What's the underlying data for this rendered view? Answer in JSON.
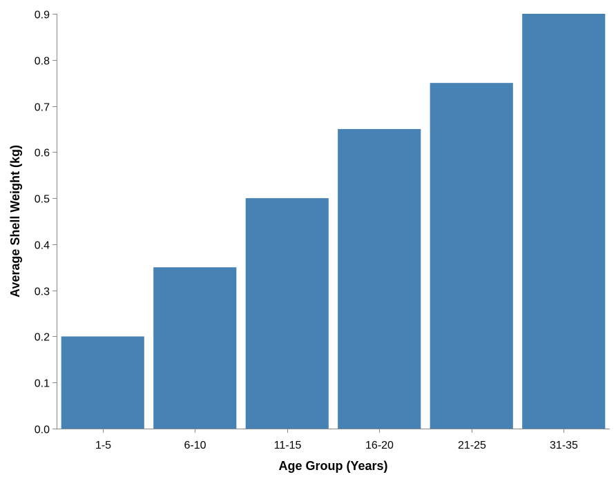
{
  "chart_data": {
    "type": "bar",
    "categories": [
      "1-5",
      "6-10",
      "11-15",
      "16-20",
      "21-25",
      "31-35"
    ],
    "values": [
      0.2,
      0.35,
      0.5,
      0.65,
      0.75,
      0.9
    ],
    "title": "",
    "xlabel": "Age Group (Years)",
    "ylabel": "Average Shell Weight (kg)",
    "ylim": [
      0,
      0.9
    ],
    "yticks": [
      "0.0",
      "0.1",
      "0.2",
      "0.3",
      "0.4",
      "0.5",
      "0.6",
      "0.7",
      "0.8",
      "0.9"
    ],
    "grid": false,
    "legend": "none",
    "bar_color": "#4682b4"
  }
}
